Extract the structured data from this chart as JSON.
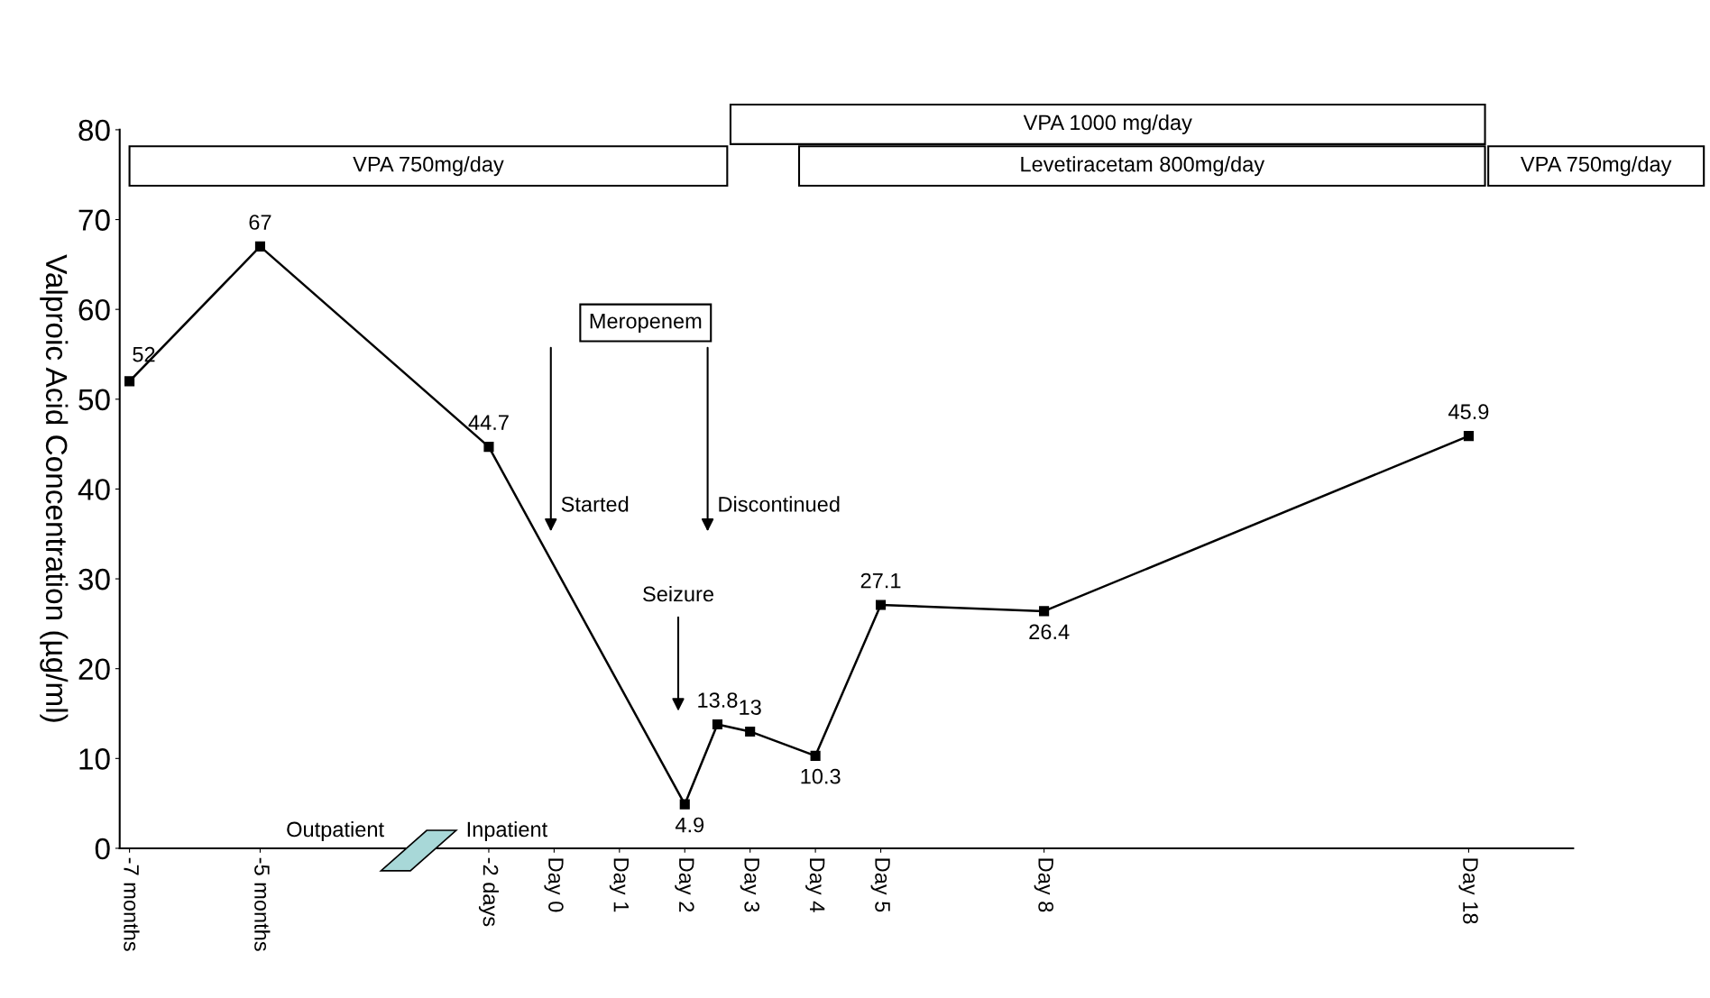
{
  "chart_data": {
    "type": "line",
    "ylabel": "Valproic Acid Concentration (µg/ml)",
    "categories": [
      "-7 months",
      null,
      null,
      null,
      "-5 months",
      null,
      null,
      null,
      null,
      null,
      null,
      "-2 days",
      null,
      "Day 0",
      null,
      "Day 1",
      null,
      "Day 2",
      null,
      "Day 3",
      null,
      "Day 4",
      null,
      "Day 5",
      null,
      null,
      null,
      null,
      "Day 8",
      null,
      null,
      null,
      null,
      null,
      null,
      null,
      null,
      null,
      null,
      null,
      null,
      "Day 18",
      null,
      null,
      null
    ],
    "values": [
      52,
      null,
      null,
      null,
      67,
      null,
      null,
      null,
      null,
      null,
      null,
      44.7,
      null,
      null,
      null,
      null,
      null,
      4.9,
      13.8,
      13,
      null,
      10.3,
      null,
      27.1,
      null,
      null,
      null,
      null,
      26.4,
      null,
      null,
      null,
      null,
      null,
      null,
      null,
      null,
      null,
      null,
      null,
      null,
      45.9,
      null,
      null,
      null
    ],
    "color": "#000000",
    "marker": "square",
    "line_style": "solid",
    "data_labels": true,
    "ylim": [
      0,
      80
    ],
    "yticks": [
      0,
      10,
      20,
      30,
      40,
      50,
      60,
      70,
      80
    ],
    "grid": false,
    "annotations": [
      "VPA 750mg/day",
      "Levetiracetam 800mg/day",
      "VPA 1000 mg/day",
      "VPA 750mg/day",
      "Meropenem",
      "Started",
      "Discontinued",
      "Seizure",
      "Outpatient",
      "Inpatient"
    ]
  }
}
